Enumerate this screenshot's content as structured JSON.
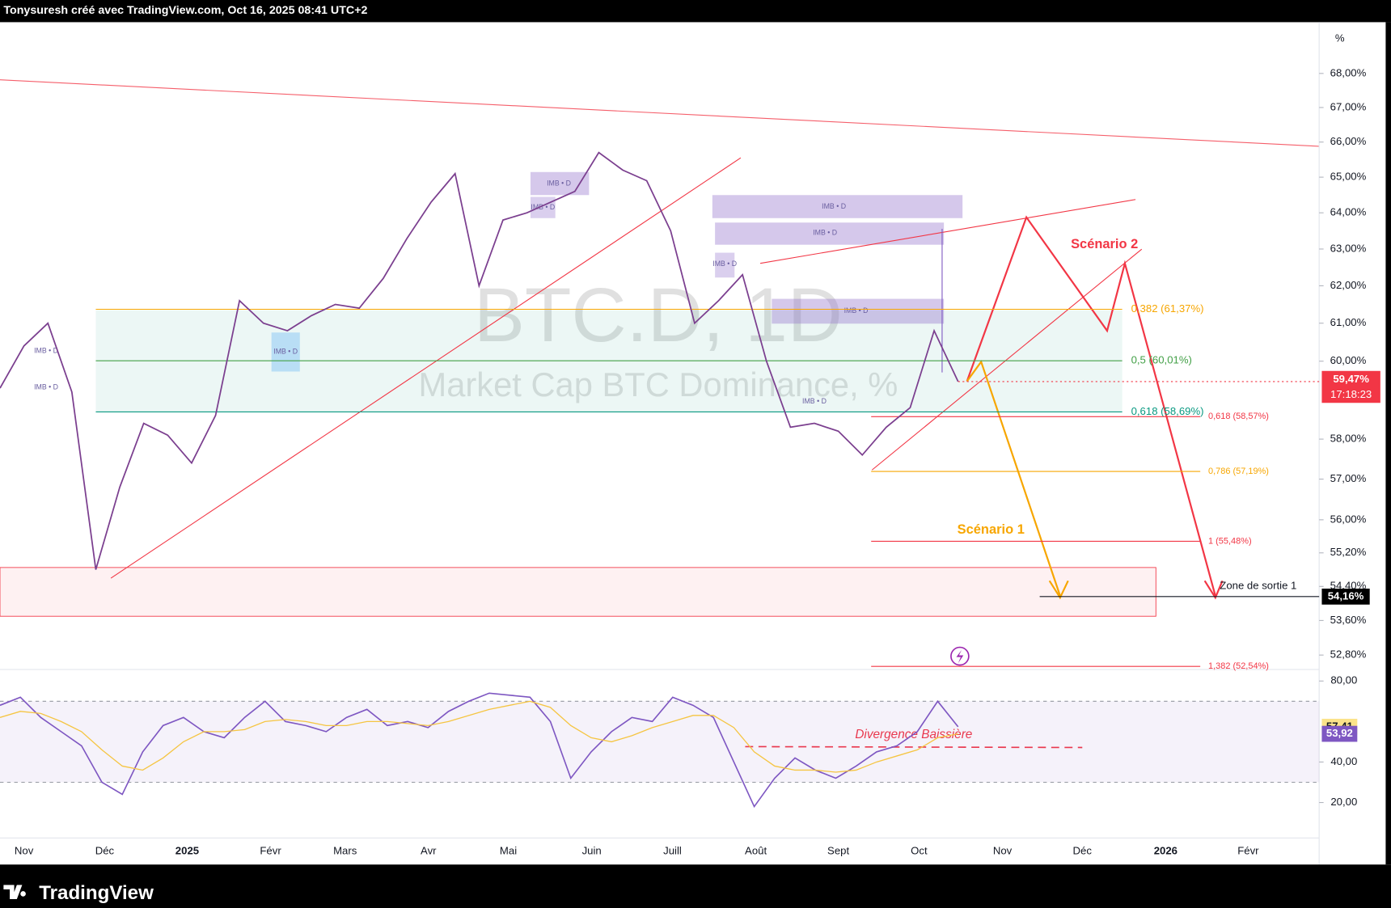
{
  "header": "Tonysuresh créé avec TradingView.com, Oct 16, 2025 08:41 UTC+2",
  "watermark": {
    "symbol": "BTC.D, 1D",
    "description": "Market Cap BTC Dominance, %"
  },
  "axis_unit": "%",
  "footer": "TradingView",
  "x_axis": {
    "labels": [
      "Nov",
      "Déc",
      "2025",
      "Févr",
      "Mars",
      "Avr",
      "Mai",
      "Juin",
      "Juill",
      "Août",
      "Sept",
      "Oct",
      "Nov",
      "Déc",
      "2026",
      "Févr"
    ]
  },
  "chart_data": [
    {
      "type": "line",
      "log": true,
      "color": "#7b3f8f",
      "ylim": [
        52.47,
        69.48
      ],
      "yticks": [
        {
          "value": 68,
          "label": "68,00%"
        },
        {
          "value": 67,
          "label": "67,00%"
        },
        {
          "value": 66,
          "label": "66,00%"
        },
        {
          "value": 65,
          "label": "65,00%"
        },
        {
          "value": 64,
          "label": "64,00%"
        },
        {
          "value": 63,
          "label": "63,00%"
        },
        {
          "value": 62,
          "label": "62,00%"
        },
        {
          "value": 61,
          "label": "61,00%"
        },
        {
          "value": 60,
          "label": "60,00%"
        },
        {
          "value": 58,
          "label": "58,00%"
        },
        {
          "value": 57,
          "label": "57,00%"
        },
        {
          "value": 56,
          "label": "56,00%"
        },
        {
          "value": 55.2,
          "label": "55,20%"
        },
        {
          "value": 54.4,
          "label": "54,40%"
        },
        {
          "value": 53.6,
          "label": "53,60%"
        },
        {
          "value": 52.8,
          "label": "52,80%"
        }
      ],
      "values": [
        59.3,
        60.4,
        61.0,
        59.2,
        54.8,
        56.8,
        58.4,
        58.1,
        57.4,
        58.6,
        61.6,
        61.0,
        60.8,
        61.2,
        61.5,
        61.4,
        62.2,
        63.3,
        64.3,
        65.1,
        62.0,
        63.8,
        64.0,
        64.3,
        64.6,
        65.7,
        65.2,
        64.9,
        63.5,
        61.0,
        61.6,
        62.3,
        60.0,
        58.3,
        58.4,
        58.2,
        57.6,
        58.3,
        58.8,
        60.8,
        59.47
      ],
      "last_label": "59,47%",
      "countdown": "17:18:23",
      "exit_level": {
        "value": 54.16,
        "label": "54,16%"
      },
      "fib_levels": [
        {
          "value": 61.37,
          "label": "0,382 (61,37%)",
          "color": "#f7a600"
        },
        {
          "value": 60.01,
          "label": "0,5 (60,01%)",
          "color": "#43a047"
        },
        {
          "value": 58.69,
          "label": "0,618 (58,69%)",
          "color": "#089981"
        },
        {
          "value": 58.57,
          "label": "0,618 (58,57%)",
          "color": "#f23645"
        },
        {
          "value": 57.19,
          "label": "0,786 (57,19%)",
          "color": "#f7a600"
        },
        {
          "value": 55.48,
          "label": "1 (55,48%)",
          "color": "#f23645"
        },
        {
          "value": 52.54,
          "label": "1,382 (52,54%)",
          "color": "#f23645"
        }
      ],
      "annotations": {
        "scenario_1": "Scénario 1",
        "scenario_2": "Scénario 2",
        "exit_zone": "Zone de sortie  1"
      },
      "imb_labels": [
        "IMB • D",
        "IMB • D",
        "IMB • D",
        "IMB • D",
        "IMB • D",
        "IMB • D",
        "IMB • D",
        "IMB • D",
        "IMB • D",
        "IMB • D"
      ]
    },
    {
      "type": "line",
      "ylim": [
        2.5,
        85.7
      ],
      "yticks": [
        {
          "value": 80,
          "label": "80,00"
        },
        {
          "value": 40,
          "label": "40,00"
        },
        {
          "value": 20,
          "label": "20,00"
        }
      ],
      "bands": [
        30,
        70
      ],
      "annotation": "Divergence Baissière",
      "series": [
        {
          "color": "#7e57c2",
          "values": [
            68,
            72,
            62,
            55,
            48,
            30,
            24,
            45,
            58,
            62,
            55,
            52,
            62,
            70,
            60,
            58,
            55,
            62,
            66,
            58,
            60,
            57,
            65,
            70,
            74,
            73,
            72,
            60,
            32,
            45,
            55,
            62,
            60,
            72,
            68,
            62,
            40,
            18,
            32,
            42,
            36,
            32,
            38,
            45,
            48,
            55,
            70,
            57.41
          ],
          "last_label": "57,41",
          "tag_color": "#fbe38a"
        },
        {
          "color": "#f5c542",
          "values": [
            62,
            65,
            64,
            60,
            55,
            46,
            38,
            36,
            42,
            50,
            55,
            55,
            56,
            60,
            61,
            60,
            58,
            58,
            60,
            60,
            59,
            58,
            60,
            63,
            66,
            68,
            70,
            67,
            58,
            52,
            50,
            53,
            57,
            60,
            63,
            63,
            57,
            45,
            38,
            36,
            36,
            35,
            36,
            40,
            43,
            46,
            52,
            53.92
          ],
          "last_label": "53,92",
          "tag_color": "#7e57c2"
        }
      ]
    }
  ]
}
